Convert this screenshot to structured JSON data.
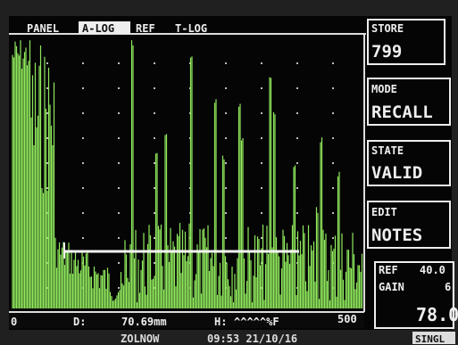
{
  "header": {
    "tabs": [
      "PANEL",
      "A-LOG",
      "REF",
      "T-LOG"
    ]
  },
  "sidebar": {
    "store": {
      "label": "STORE",
      "value": "799"
    },
    "mode": {
      "label": "MODE",
      "value": "RECALL"
    },
    "state": {
      "label": "STATE",
      "value": "VALID"
    },
    "edit": {
      "label": "EDIT",
      "value": "NOTES"
    },
    "ref": {
      "label": "REF",
      "value": "40.0"
    },
    "gain": {
      "label": "GAIN",
      "value": "6",
      "reading": "78.0"
    }
  },
  "scale": {
    "start": "0",
    "end": "500"
  },
  "readout": {
    "d_label": "D:",
    "d_value": "70.69mm",
    "h_label": "H:",
    "h_value": "^^^^^%F"
  },
  "status": {
    "name": "ZOLNOW",
    "datetime": "09:53 21/10/16",
    "mode": "SINGL"
  }
}
